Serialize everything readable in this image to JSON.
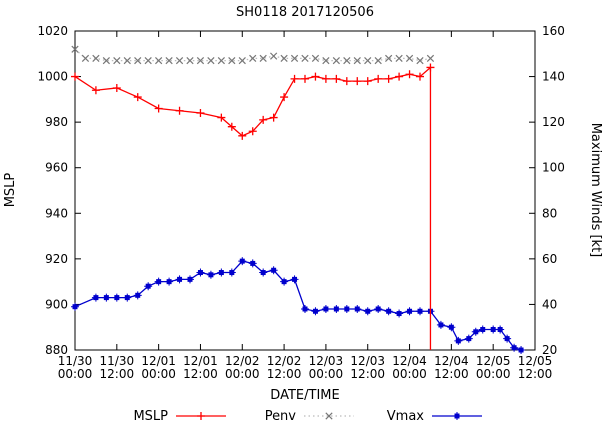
{
  "window": {
    "title": "SH0118 2017120506"
  },
  "chart_data": {
    "type": "line",
    "title": "SH0118 2017120506",
    "xlabel": "DATE/TIME",
    "grid": false,
    "legend_position": "bottom",
    "y_left": {
      "label": "MSLP",
      "min": 880,
      "max": 1020,
      "ticks": [
        880,
        900,
        920,
        940,
        960,
        980,
        1000,
        1020
      ]
    },
    "y_right": {
      "label": "Maximum Winds [kt]",
      "min": 20,
      "max": 160,
      "ticks": [
        20,
        40,
        60,
        80,
        100,
        120,
        140,
        160
      ]
    },
    "x_axis": {
      "min_hours": 0,
      "max_hours": 132,
      "tick_step_hours": 12,
      "tick_labels": [
        [
          "11/30",
          "00:00"
        ],
        [
          "11/30",
          "12:00"
        ],
        [
          "12/01",
          "00:00"
        ],
        [
          "12/01",
          "12:00"
        ],
        [
          "12/02",
          "00:00"
        ],
        [
          "12/02",
          "12:00"
        ],
        [
          "12/03",
          "00:00"
        ],
        [
          "12/03",
          "12:00"
        ],
        [
          "12/04",
          "00:00"
        ],
        [
          "12/04",
          "12:00"
        ],
        [
          "12/05",
          "00:00"
        ],
        [
          "12/05",
          "12:00"
        ]
      ]
    },
    "series": [
      {
        "name": "MSLP",
        "axis": "left",
        "color": "#ff0000",
        "marker": "plus",
        "line": "solid",
        "points": [
          [
            0,
            1000
          ],
          [
            6,
            994
          ],
          [
            12,
            995
          ],
          [
            18,
            991
          ],
          [
            24,
            986
          ],
          [
            30,
            985
          ],
          [
            36,
            984
          ],
          [
            42,
            982
          ],
          [
            45,
            978
          ],
          [
            48,
            974
          ],
          [
            51,
            976
          ],
          [
            54,
            981
          ],
          [
            57,
            982
          ],
          [
            60,
            991
          ],
          [
            63,
            999
          ],
          [
            66,
            999
          ],
          [
            69,
            1000
          ],
          [
            72,
            999
          ],
          [
            75,
            999
          ],
          [
            78,
            998
          ],
          [
            81,
            998
          ],
          [
            84,
            998
          ],
          [
            87,
            999
          ],
          [
            90,
            999
          ],
          [
            93,
            1000
          ],
          [
            96,
            1001
          ],
          [
            99,
            1000
          ],
          [
            102,
            1004
          ]
        ]
      },
      {
        "name": "Penv",
        "axis": "left",
        "color": "#bbbbbb",
        "marker_color": "#777777",
        "marker": "cross",
        "line": "dotted",
        "points": [
          [
            0,
            1012
          ],
          [
            3,
            1008
          ],
          [
            6,
            1008
          ],
          [
            9,
            1007
          ],
          [
            12,
            1007
          ],
          [
            15,
            1007
          ],
          [
            18,
            1007
          ],
          [
            21,
            1007
          ],
          [
            24,
            1007
          ],
          [
            27,
            1007
          ],
          [
            30,
            1007
          ],
          [
            33,
            1007
          ],
          [
            36,
            1007
          ],
          [
            39,
            1007
          ],
          [
            42,
            1007
          ],
          [
            45,
            1007
          ],
          [
            48,
            1007
          ],
          [
            51,
            1008
          ],
          [
            54,
            1008
          ],
          [
            57,
            1009
          ],
          [
            60,
            1008
          ],
          [
            63,
            1008
          ],
          [
            66,
            1008
          ],
          [
            69,
            1008
          ],
          [
            72,
            1007
          ],
          [
            75,
            1007
          ],
          [
            78,
            1007
          ],
          [
            81,
            1007
          ],
          [
            84,
            1007
          ],
          [
            87,
            1007
          ],
          [
            90,
            1008
          ],
          [
            93,
            1008
          ],
          [
            96,
            1008
          ],
          [
            99,
            1007
          ],
          [
            102,
            1008
          ]
        ]
      },
      {
        "name": "Vmax",
        "axis": "right",
        "color": "#0000cd",
        "marker": "square",
        "line": "solid",
        "points": [
          [
            0,
            39
          ],
          [
            6,
            43
          ],
          [
            9,
            43
          ],
          [
            12,
            43
          ],
          [
            15,
            43
          ],
          [
            18,
            44
          ],
          [
            21,
            48
          ],
          [
            24,
            50
          ],
          [
            27,
            50
          ],
          [
            30,
            51
          ],
          [
            33,
            51
          ],
          [
            36,
            54
          ],
          [
            39,
            53
          ],
          [
            42,
            54
          ],
          [
            45,
            54
          ],
          [
            48,
            59
          ],
          [
            51,
            58
          ],
          [
            54,
            54
          ],
          [
            57,
            55
          ],
          [
            60,
            50
          ],
          [
            63,
            51
          ],
          [
            66,
            38
          ],
          [
            69,
            37
          ],
          [
            72,
            38
          ],
          [
            75,
            38
          ],
          [
            78,
            38
          ],
          [
            81,
            38
          ],
          [
            84,
            37
          ],
          [
            87,
            38
          ],
          [
            90,
            37
          ],
          [
            93,
            36
          ],
          [
            96,
            37
          ],
          [
            99,
            37
          ],
          [
            102,
            37
          ],
          [
            105,
            31
          ],
          [
            108,
            30
          ],
          [
            110,
            24
          ],
          [
            113,
            25
          ],
          [
            115,
            28
          ],
          [
            117,
            29
          ],
          [
            120,
            29
          ],
          [
            122,
            29
          ],
          [
            124,
            25
          ],
          [
            126,
            21
          ],
          [
            128,
            20
          ]
        ]
      }
    ],
    "annotations": [
      {
        "type": "vline",
        "x_hours": 102,
        "from": 1004,
        "to": 880,
        "axis": "left",
        "color": "#ff0000"
      }
    ]
  }
}
